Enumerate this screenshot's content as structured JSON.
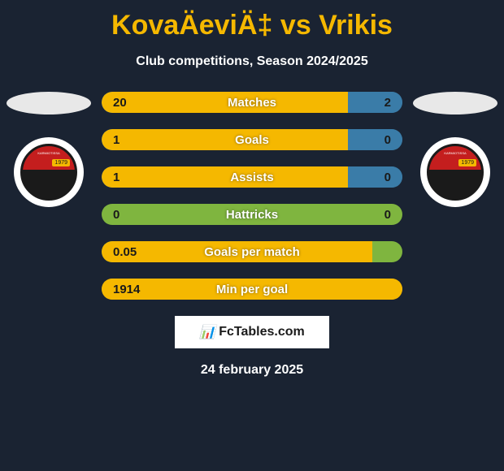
{
  "title": "KovaÄeviÄ‡ vs Vrikis",
  "subtitle": "Club competitions, Season 2024/2025",
  "date": "24 february 2025",
  "footer_brand": "FcTables.com",
  "colors": {
    "background": "#1a2332",
    "title_color": "#f5b800",
    "text_color": "#ffffff",
    "bar_yellow": "#f5b800",
    "bar_blue": "#3a7ca8",
    "bar_green": "#7fb53f",
    "placeholder": "#e8e8e8",
    "badge_red": "#c41e1e",
    "badge_black": "#1a1a1a"
  },
  "badge": {
    "text": "KARMIOTISSA",
    "year": "1979"
  },
  "stats": [
    {
      "label": "Matches",
      "left_value": "20",
      "right_value": "2",
      "left_width_pct": 82,
      "right_width_pct": 18,
      "left_color": "#f5b800",
      "right_color": "#3a7ca8",
      "bg_color": "#3a7ca8"
    },
    {
      "label": "Goals",
      "left_value": "1",
      "right_value": "0",
      "left_width_pct": 82,
      "right_width_pct": 18,
      "left_color": "#f5b800",
      "right_color": "#3a7ca8",
      "bg_color": "#3a7ca8"
    },
    {
      "label": "Assists",
      "left_value": "1",
      "right_value": "0",
      "left_width_pct": 82,
      "right_width_pct": 18,
      "left_color": "#f5b800",
      "right_color": "#3a7ca8",
      "bg_color": "#3a7ca8"
    },
    {
      "label": "Hattricks",
      "left_value": "0",
      "right_value": "0",
      "left_width_pct": 0,
      "right_width_pct": 0,
      "left_color": "#7fb53f",
      "right_color": "#7fb53f",
      "bg_color": "#7fb53f"
    },
    {
      "label": "Goals per match",
      "left_value": "0.05",
      "right_value": "",
      "left_width_pct": 90,
      "right_width_pct": 0,
      "left_color": "#f5b800",
      "right_color": "#7fb53f",
      "bg_color": "#7fb53f"
    },
    {
      "label": "Min per goal",
      "left_value": "1914",
      "right_value": "",
      "left_width_pct": 100,
      "right_width_pct": 0,
      "left_color": "#f5b800",
      "right_color": "#f5b800",
      "bg_color": "#f5b800"
    }
  ]
}
